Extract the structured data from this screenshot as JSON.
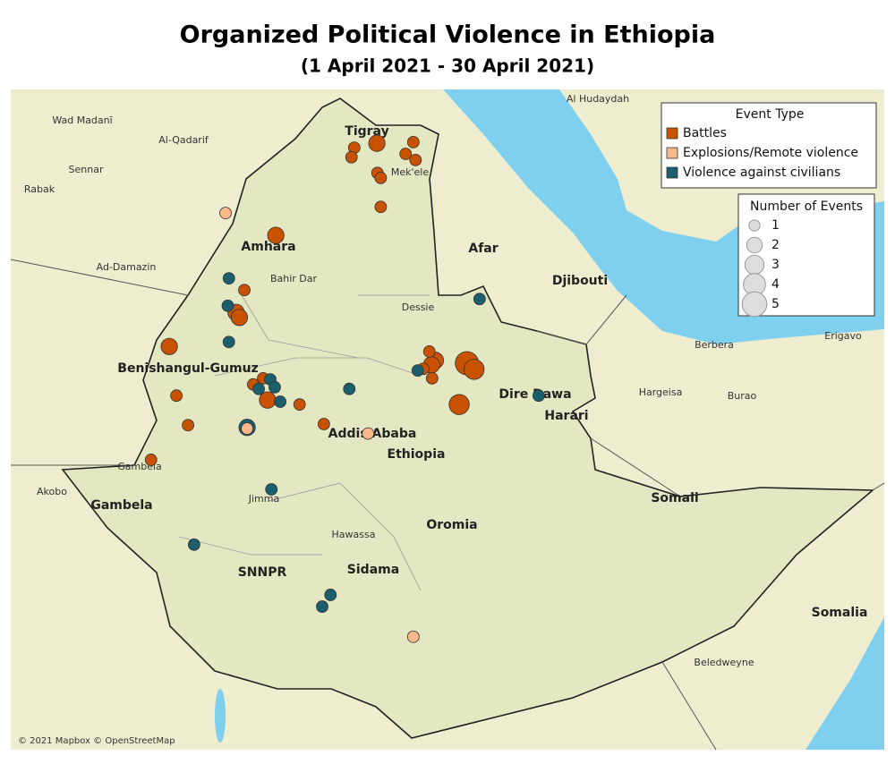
{
  "title": "Organized Political Violence in Ethiopia",
  "subtitle": "(1 April 2021 - 30 April 2021)",
  "attribution": "© 2021 Mapbox © OpenStreetMap",
  "places": [
    "Wad Madanī",
    "Al-Qadarif",
    "Sennar",
    "Rabak",
    "Al Hudaydah",
    "Tigray",
    "Mek'ele",
    "Amhara",
    "Afar",
    "Bahir Dar",
    "Ad-Damazin",
    "Djibouti",
    "Dessie",
    "Benishangul-Gumuz",
    "Berbera",
    "Erigavo",
    "Hargeisa",
    "Burao",
    "Dire Dawa",
    "Harari",
    "Addis Ababa",
    "Ethiopia",
    "Gambela",
    "Akobo",
    "Gambela",
    "Jimma",
    "Somali",
    "Oromia",
    "Hawassa",
    "SNNPR",
    "Sidama",
    "Somalia",
    "Beledweyne"
  ],
  "legend": {
    "event_type_title": "Event Type",
    "size_title": "Number of Events",
    "sizes": [
      1,
      2,
      3,
      4,
      5
    ],
    "types": [
      {
        "name": "Battles",
        "color": "#c85200",
        "events": [
          {
            "lon": 38.51,
            "lat": 14.14,
            "count": 1
          },
          {
            "lon": 38.46,
            "lat": 13.97,
            "count": 1
          },
          {
            "lon": 38.92,
            "lat": 14.22,
            "count": 2
          },
          {
            "lon": 39.58,
            "lat": 14.24,
            "count": 1
          },
          {
            "lon": 39.44,
            "lat": 14.03,
            "count": 1
          },
          {
            "lon": 39.62,
            "lat": 13.92,
            "count": 1
          },
          {
            "lon": 38.93,
            "lat": 13.69,
            "count": 1
          },
          {
            "lon": 38.99,
            "lat": 13.6,
            "count": 1
          },
          {
            "lon": 38.99,
            "lat": 13.08,
            "count": 1
          },
          {
            "lon": 37.09,
            "lat": 12.57,
            "count": 2
          },
          {
            "lon": 36.52,
            "lat": 11.59,
            "count": 1
          },
          {
            "lon": 36.37,
            "lat": 11.19,
            "count": 2
          },
          {
            "lon": 36.43,
            "lat": 11.1,
            "count": 2
          },
          {
            "lon": 35.16,
            "lat": 10.58,
            "count": 2
          },
          {
            "lon": 39.87,
            "lat": 10.49,
            "count": 1
          },
          {
            "lon": 39.98,
            "lat": 10.33,
            "count": 2
          },
          {
            "lon": 39.91,
            "lat": 10.25,
            "count": 2
          },
          {
            "lon": 40.55,
            "lat": 10.28,
            "count": 4
          },
          {
            "lon": 40.68,
            "lat": 10.17,
            "count": 3
          },
          {
            "lon": 39.76,
            "lat": 10.18,
            "count": 1
          },
          {
            "lon": 39.92,
            "lat": 10.01,
            "count": 1
          },
          {
            "lon": 40.41,
            "lat": 9.54,
            "count": 3
          },
          {
            "lon": 36.68,
            "lat": 9.9,
            "count": 1
          },
          {
            "lon": 36.86,
            "lat": 10.01,
            "count": 1
          },
          {
            "lon": 35.29,
            "lat": 9.7,
            "count": 1
          },
          {
            "lon": 36.94,
            "lat": 9.62,
            "count": 2
          },
          {
            "lon": 37.52,
            "lat": 9.54,
            "count": 1
          },
          {
            "lon": 35.5,
            "lat": 9.17,
            "count": 1
          },
          {
            "lon": 37.96,
            "lat": 9.19,
            "count": 1
          },
          {
            "lon": 34.83,
            "lat": 8.55,
            "count": 1
          }
        ]
      },
      {
        "name": "Explosions/Remote violence",
        "color": "#f9b98a",
        "events": [
          {
            "lon": 36.18,
            "lat": 12.97,
            "count": 1
          },
          {
            "lon": 38.76,
            "lat": 9.02,
            "count": 1
          },
          {
            "lon": 39.58,
            "lat": 5.38,
            "count": 1
          },
          {
            "lon": 36.57,
            "lat": 9.11,
            "count": 1
          }
        ]
      },
      {
        "name": "Violence against civilians",
        "color": "#1b5e6e",
        "events": [
          {
            "lon": 36.24,
            "lat": 11.8,
            "count": 1
          },
          {
            "lon": 36.22,
            "lat": 11.31,
            "count": 1
          },
          {
            "lon": 36.24,
            "lat": 10.66,
            "count": 1
          },
          {
            "lon": 40.78,
            "lat": 11.43,
            "count": 1
          },
          {
            "lon": 39.66,
            "lat": 10.15,
            "count": 1
          },
          {
            "lon": 36.99,
            "lat": 9.99,
            "count": 1
          },
          {
            "lon": 37.07,
            "lat": 9.85,
            "count": 1
          },
          {
            "lon": 36.78,
            "lat": 9.82,
            "count": 1
          },
          {
            "lon": 37.17,
            "lat": 9.59,
            "count": 1
          },
          {
            "lon": 38.42,
            "lat": 9.82,
            "count": 1
          },
          {
            "lon": 41.85,
            "lat": 9.7,
            "count": 1
          },
          {
            "lon": 36.57,
            "lat": 9.13,
            "count": 2
          },
          {
            "lon": 37.01,
            "lat": 8.02,
            "count": 1
          },
          {
            "lon": 35.61,
            "lat": 7.03,
            "count": 1
          },
          {
            "lon": 38.08,
            "lat": 6.13,
            "count": 1
          },
          {
            "lon": 37.93,
            "lat": 5.92,
            "count": 1
          }
        ]
      }
    ]
  }
}
